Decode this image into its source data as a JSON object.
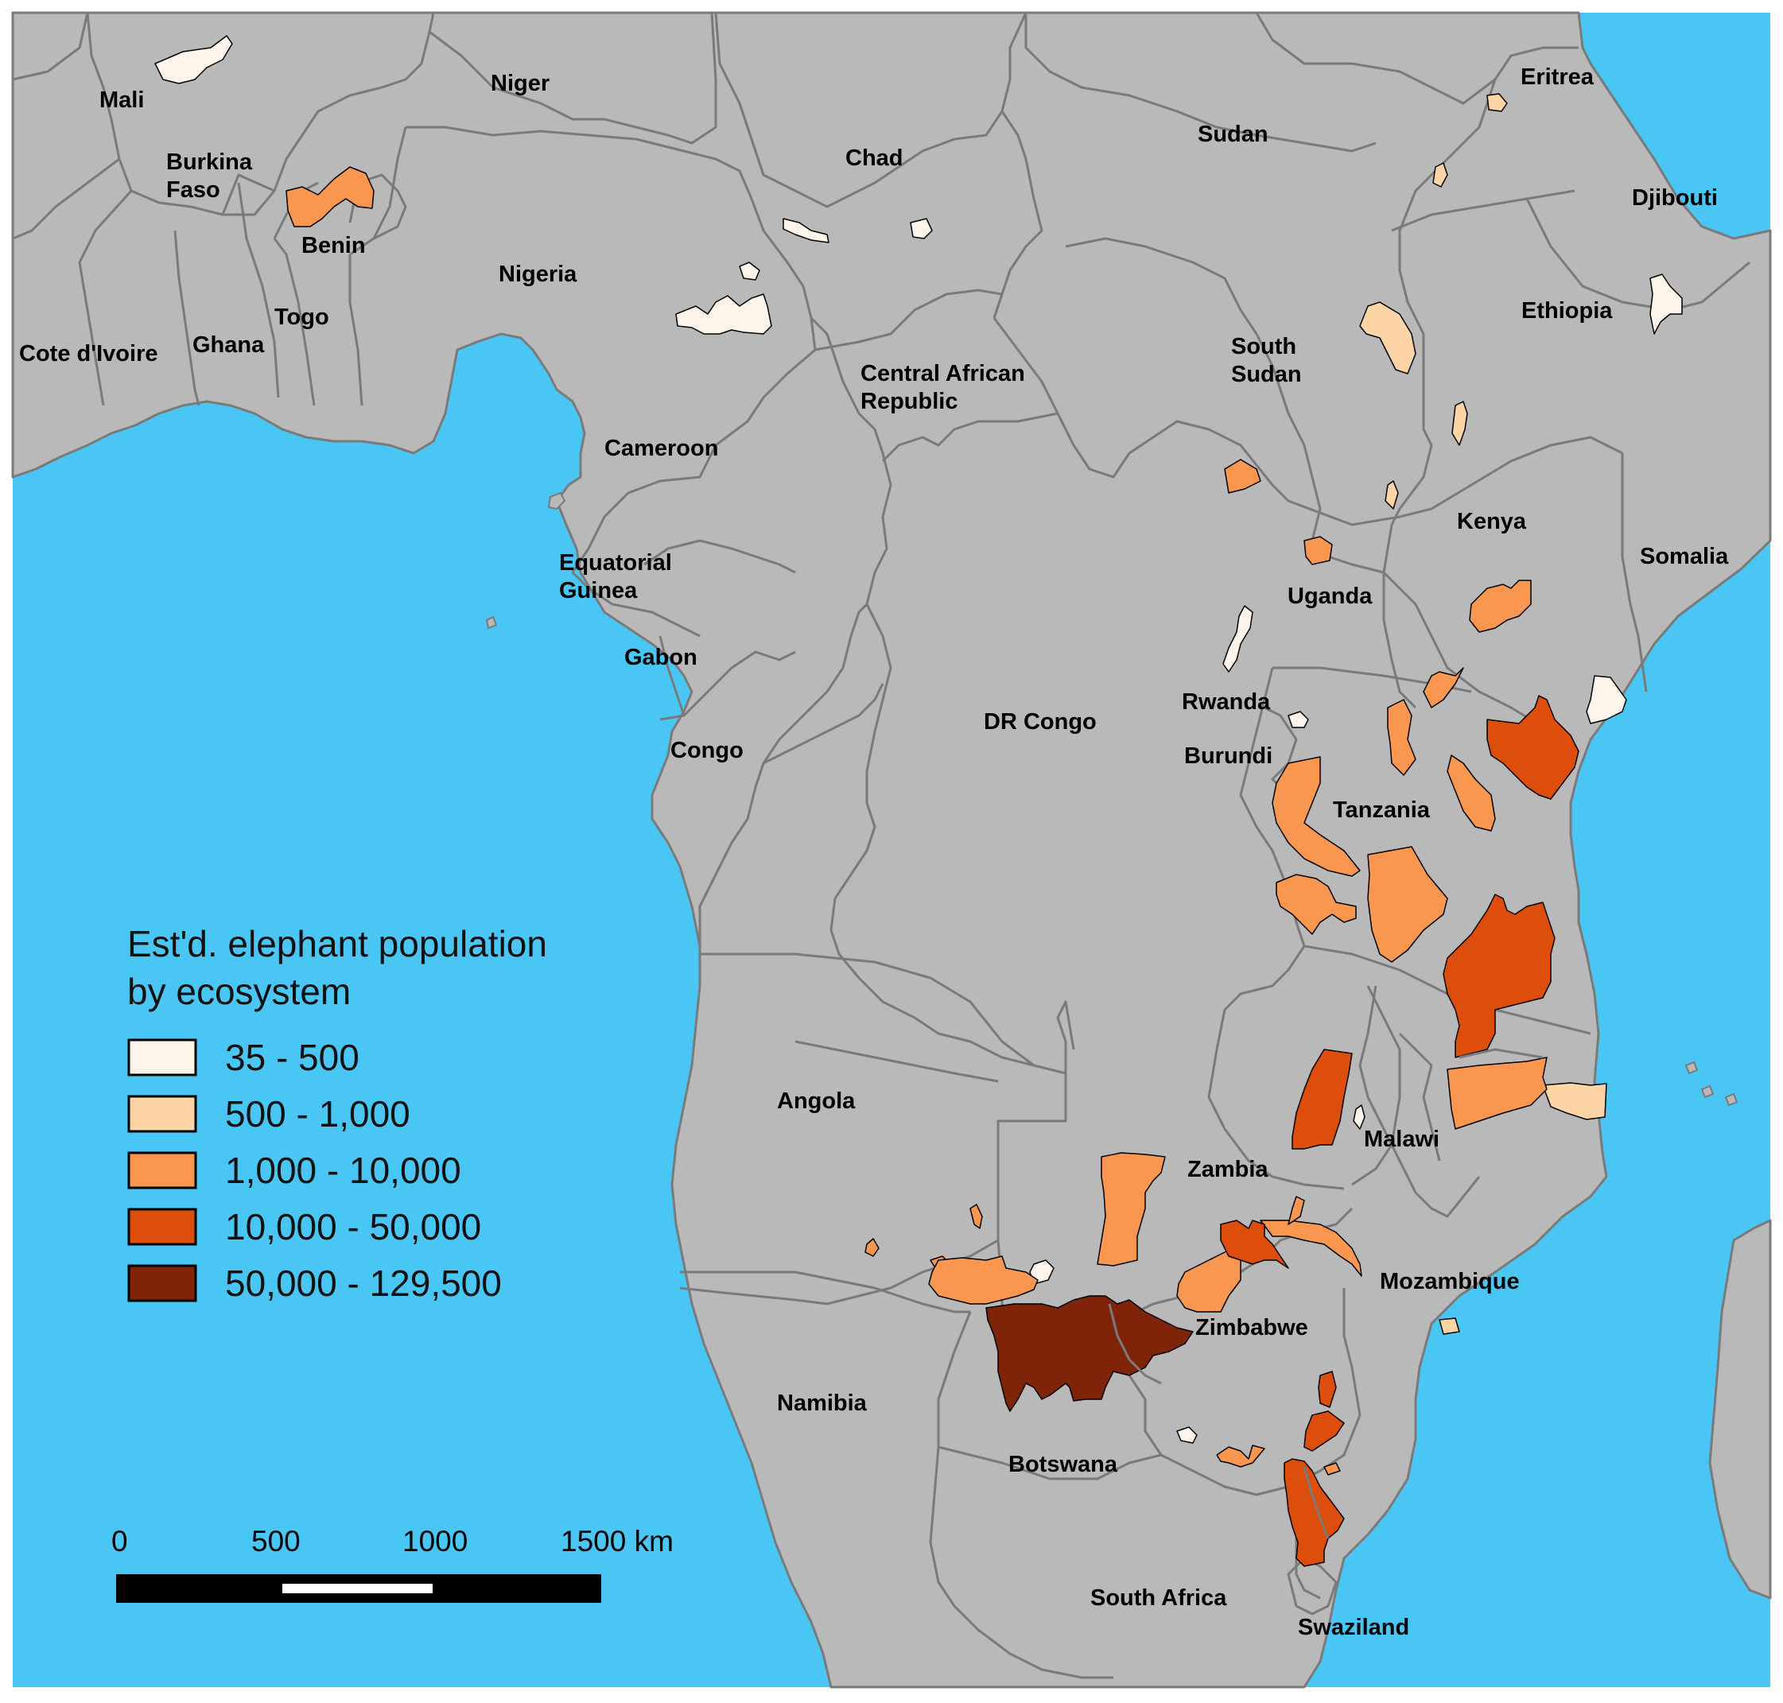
{
  "colors": {
    "ocean": "#4ac6f5",
    "land": "#b9b9b9",
    "border": "#7a7a7a",
    "class_35_500": "#fff4ea",
    "class_500_1000": "#fdd4a6",
    "class_1000_10000": "#f99650",
    "class_10000_50000": "#dd4d0b",
    "class_50000_129500": "#7f2409"
  },
  "legend": {
    "title_line1": "Est'd. elephant population",
    "title_line2": "by ecosystem",
    "classes": [
      {
        "label": "35 - 500",
        "color": "#fff4ea"
      },
      {
        "label": "500 - 1,000",
        "color": "#fdd4a6"
      },
      {
        "label": "1,000 - 10,000",
        "color": "#f99650"
      },
      {
        "label": "10,000 - 50,000",
        "color": "#dd4d0b"
      },
      {
        "label": "50,000 - 129,500",
        "color": "#7f2409"
      }
    ]
  },
  "scale_bar": {
    "labels": [
      "0",
      "500",
      "1000",
      "1500 km"
    ]
  },
  "countries": [
    {
      "name": "Mali"
    },
    {
      "name": "Niger"
    },
    {
      "name": "Burkina",
      "line2": "Faso"
    },
    {
      "name": "Benin"
    },
    {
      "name": "Togo"
    },
    {
      "name": "Nigeria"
    },
    {
      "name": "Ghana"
    },
    {
      "name": "Cote d'Ivoire"
    },
    {
      "name": "Chad"
    },
    {
      "name": "Sudan"
    },
    {
      "name": "Eritrea"
    },
    {
      "name": "Djibouti"
    },
    {
      "name": "Ethiopia"
    },
    {
      "name": "South",
      "line2": "Sudan"
    },
    {
      "name": "Central African",
      "line2": "Republic"
    },
    {
      "name": "Cameroon"
    },
    {
      "name": "Equatorial",
      "line2": "Guinea"
    },
    {
      "name": "Gabon"
    },
    {
      "name": "Congo"
    },
    {
      "name": "DR Congo"
    },
    {
      "name": "Uganda"
    },
    {
      "name": "Kenya"
    },
    {
      "name": "Somalia"
    },
    {
      "name": "Rwanda"
    },
    {
      "name": "Burundi"
    },
    {
      "name": "Tanzania"
    },
    {
      "name": "Angola"
    },
    {
      "name": "Zambia"
    },
    {
      "name": "Malawi"
    },
    {
      "name": "Mozambique"
    },
    {
      "name": "Zimbabwe"
    },
    {
      "name": "Namibia"
    },
    {
      "name": "Botswana"
    },
    {
      "name": "South Africa"
    },
    {
      "name": "Swaziland"
    }
  ]
}
